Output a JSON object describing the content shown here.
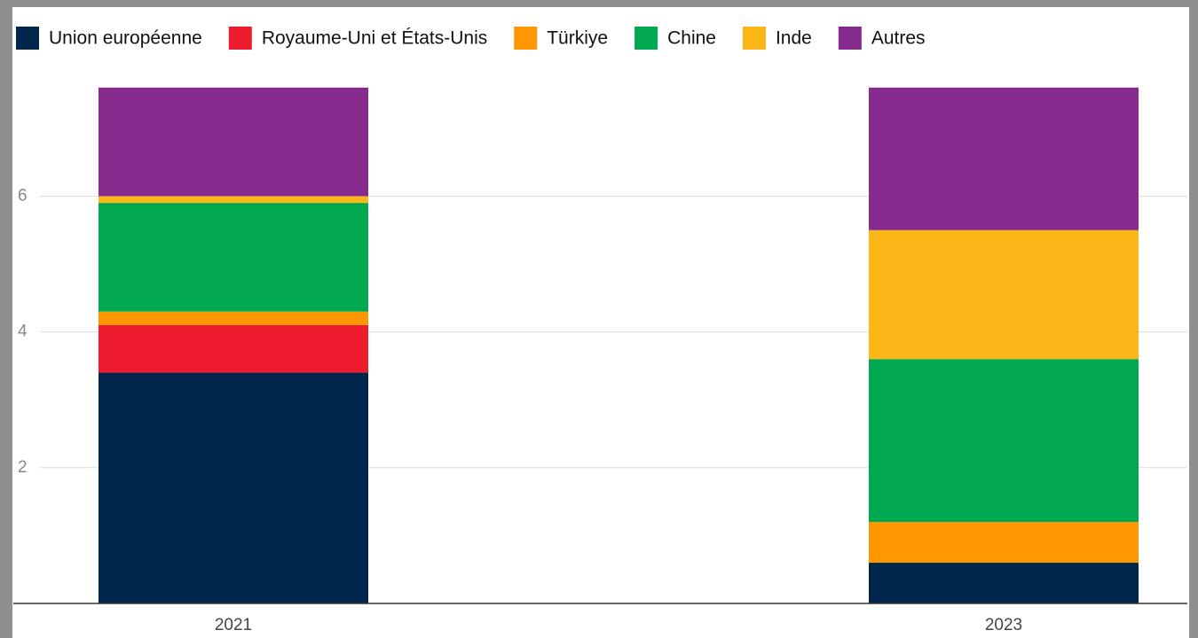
{
  "chart_data": {
    "type": "stacked-bar",
    "categories": [
      "2021",
      "2023"
    ],
    "series": [
      {
        "name": "Union européenne",
        "color": "#00264d",
        "values": [
          3.4,
          0.6
        ]
      },
      {
        "name": "Royaume-Uni et États-Unis",
        "color": "#ec1c2e",
        "values": [
          0.7,
          0
        ]
      },
      {
        "name": "Türkiye",
        "color": "#ff9800",
        "values": [
          0.2,
          0.6
        ]
      },
      {
        "name": "Chine",
        "color": "#00a94f",
        "values": [
          1.6,
          2.4
        ]
      },
      {
        "name": "Inde",
        "color": "#fbb717",
        "values": [
          0.1,
          1.9
        ]
      },
      {
        "name": "Autres",
        "color": "#862a8e",
        "values": [
          1.6,
          2.1
        ]
      }
    ],
    "ylim": [
      0,
      7.8
    ],
    "yticks": [
      2,
      4,
      6
    ],
    "grid": true
  }
}
